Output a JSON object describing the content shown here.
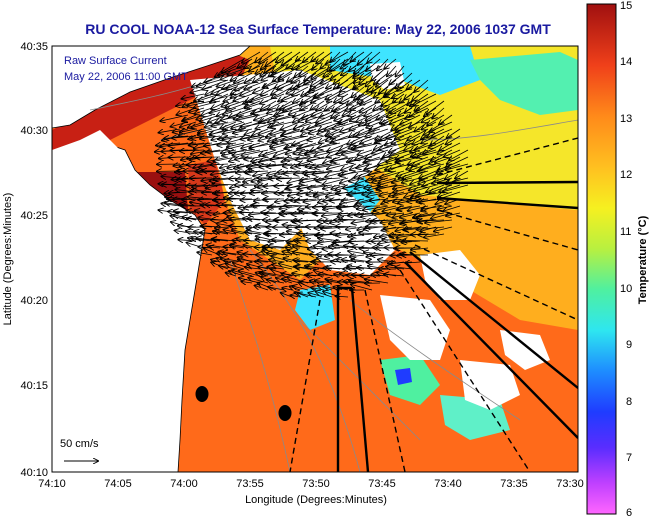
{
  "title": "RU COOL  NOAA-12  Sea Surface Temperature:  May 22, 2006 1037 GMT",
  "annotation": {
    "line1": "Raw Surface Current",
    "line2": "May 22, 2006 11:00 GMT"
  },
  "x_axis": {
    "label": "Longitude (Degrees:Minutes)",
    "ticks": [
      "74:10",
      "74:05",
      "74:00",
      "73:55",
      "73:50",
      "73:45",
      "73:40",
      "73:35",
      "73:30"
    ]
  },
  "y_axis": {
    "label": "Latitude (Degrees:Minutes)",
    "ticks": [
      "40:35",
      "40:30",
      "40:25",
      "40:20",
      "40:15",
      "40:10"
    ]
  },
  "colorbar": {
    "label": "Temperature (°C)",
    "min": 6,
    "max": 15,
    "ticks": [
      "15",
      "14",
      "13",
      "12",
      "11",
      "10",
      "9",
      "8",
      "7",
      "6"
    ]
  },
  "scale": {
    "label": "50 cm/s"
  },
  "colors": {
    "title_text": "#1a1aa0",
    "land": "#ffffff",
    "clouds": "#ffffff",
    "vectors": "#000000",
    "sst_warm": "#ff5a1a",
    "sst_hot": "#a01010",
    "sst_mid": "#ffb020",
    "sst_cool": "#40e0ff"
  },
  "icons": [
    "velocity-vector-arrow",
    "scale-arrow",
    "station-marker"
  ]
}
